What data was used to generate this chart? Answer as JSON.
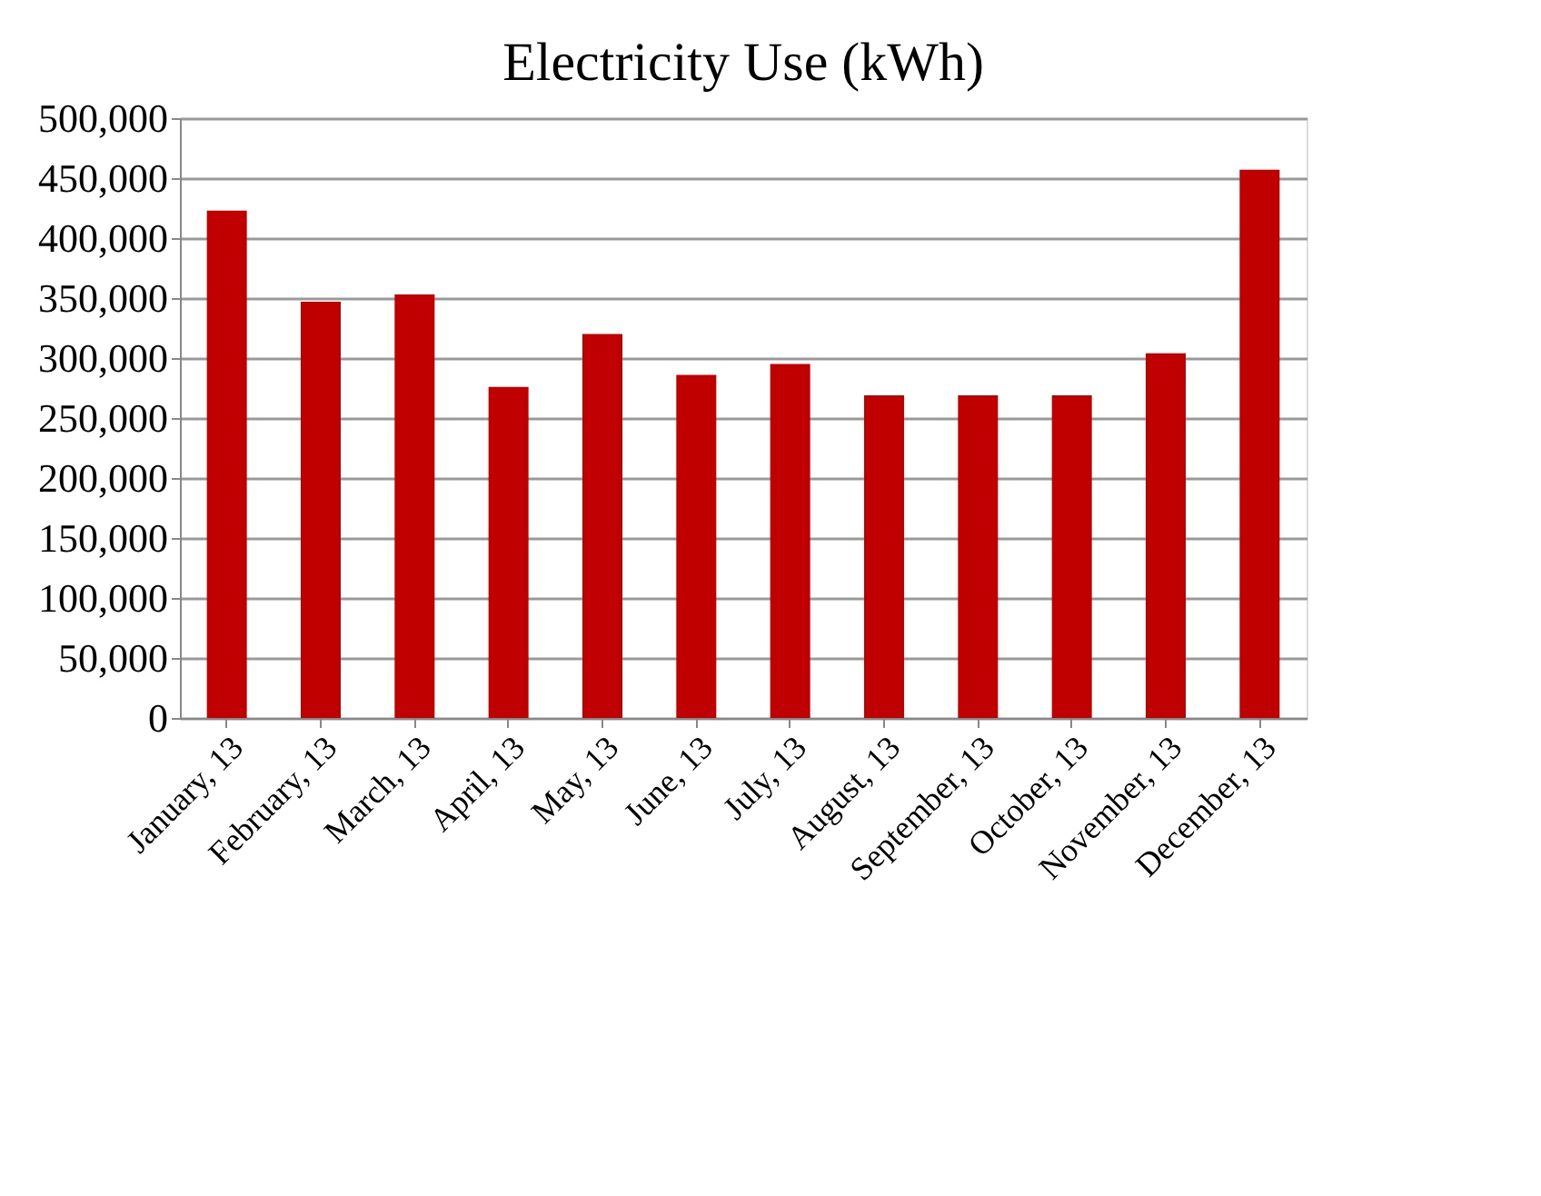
{
  "chart_data": {
    "type": "bar",
    "title": "Electricity Use (kWh)",
    "categories": [
      "January, 13",
      "February, 13",
      "March, 13",
      "April, 13",
      "May, 13",
      "June, 13",
      "July, 13",
      "August, 13",
      "September, 13",
      "October, 13",
      "November, 13",
      "December, 13"
    ],
    "values": [
      423000,
      347000,
      353000,
      276000,
      320000,
      286000,
      295000,
      269000,
      269000,
      269000,
      304000,
      457000
    ],
    "color": "#c00000",
    "ylim": [
      0,
      500000
    ],
    "yticks": [
      {
        "value": 0,
        "label": "0"
      },
      {
        "value": 50000,
        "label": "50,000"
      },
      {
        "value": 100000,
        "label": "100,000"
      },
      {
        "value": 150000,
        "label": "150,000"
      },
      {
        "value": 200000,
        "label": "200,000"
      },
      {
        "value": 250000,
        "label": "250,000"
      },
      {
        "value": 300000,
        "label": "300,000"
      },
      {
        "value": 350000,
        "label": "350,000"
      },
      {
        "value": 400000,
        "label": "400,000"
      },
      {
        "value": 450000,
        "label": "450,000"
      },
      {
        "value": 500000,
        "label": "500,000"
      }
    ],
    "grid": "y"
  }
}
